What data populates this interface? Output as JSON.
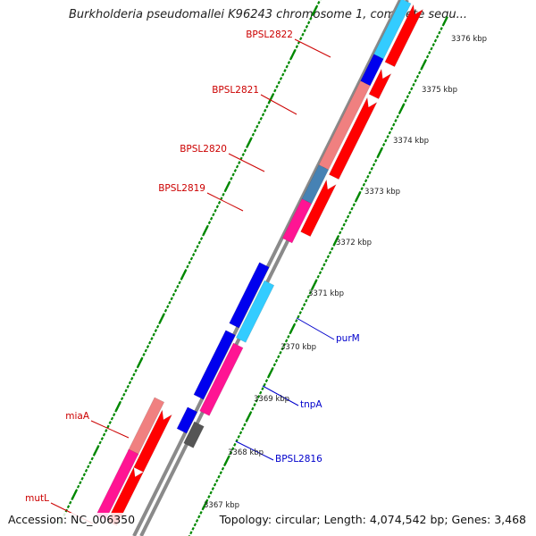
{
  "title": "Burkholderia pseudomallei K96243 chromosome 1, complete sequ...",
  "accession": "Accession: NC_006350",
  "topology": "Topology: circular; Length: 4,074,542 bp; Genes: 3,468",
  "colors": {
    "forward_strand": "#ff0000",
    "blue": "#0000ee",
    "light_blue": "#33ccff",
    "salmon": "#f08080",
    "pink": "#ff1493",
    "steel": "#4682b4",
    "gray": "#555555",
    "ticks": "#008800",
    "label_red": "#cc0000",
    "label_blue": "#0000cc"
  },
  "scale_labels": [
    {
      "label": "3376 kbp",
      "kbp": 3376
    },
    {
      "label": "3375 kbp",
      "kbp": 3375
    },
    {
      "label": "3374 kbp",
      "kbp": 3374
    },
    {
      "label": "3373 kbp",
      "kbp": 3373
    },
    {
      "label": "3372 kbp",
      "kbp": 3372
    },
    {
      "label": "3371 kbp",
      "kbp": 3371
    },
    {
      "label": "3370 kbp",
      "kbp": 3370
    },
    {
      "label": "3369 kbp",
      "kbp": 3369
    },
    {
      "label": "3368 kbp",
      "kbp": 3368
    },
    {
      "label": "3367 kbp",
      "kbp": 3367
    }
  ],
  "gene_labels": [
    {
      "name": "BPSL2822",
      "color": "red"
    },
    {
      "name": "BPSL2821",
      "color": "red"
    },
    {
      "name": "BPSL2820",
      "color": "red"
    },
    {
      "name": "BPSL2819",
      "color": "red"
    },
    {
      "name": "purM",
      "color": "blue"
    },
    {
      "name": "tnpA",
      "color": "blue"
    },
    {
      "name": "BPSL2816",
      "color": "blue"
    },
    {
      "name": "miaA",
      "color": "red"
    },
    {
      "name": "mutL",
      "color": "red"
    }
  ]
}
